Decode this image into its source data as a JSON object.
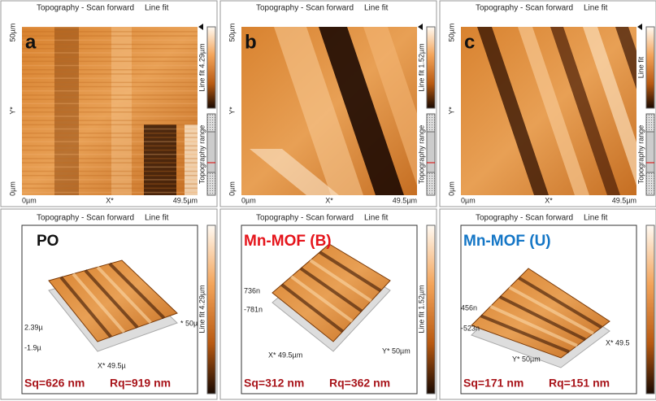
{
  "top_panels": [
    {
      "header": "Topography - Scan forward",
      "mode": "Line fit",
      "letter": "a",
      "y_top": "50µm",
      "y_mid": "Y*",
      "y_bottom": "0µm",
      "x_left": "0µm",
      "x_mid": "X*",
      "x_right": "49.5µm",
      "colorbar": "Line fit 4.29µm",
      "range": "Topography range"
    },
    {
      "header": "Topography - Scan forward",
      "mode": "Line fit",
      "letter": "b",
      "y_top": "50µm",
      "y_mid": "Y*",
      "y_bottom": "0µm",
      "x_left": "0µm",
      "x_mid": "X*",
      "x_right": "49.5µm",
      "colorbar": "Line fit 1.52µm",
      "range": "Topography range"
    },
    {
      "header": "Topography - Scan forward",
      "mode": "Line fit",
      "letter": "c",
      "y_top": "50µm",
      "y_mid": "Y*",
      "y_bottom": "0µm",
      "x_left": "0µm",
      "x_mid": "X*",
      "x_right": "49.5µm",
      "colorbar": "Line fit",
      "range": "Topography range"
    }
  ],
  "bottom_panels": [
    {
      "header": "Topography - Scan forward",
      "mode": "Line fit",
      "sample": "PO",
      "z_max": "2.39µ",
      "z_min": "-1.9µ",
      "x_axis": "X* 49.5µ",
      "y_axis": "* 50µ",
      "colorbar": "Line fit 4.29µm",
      "sq": "Sq=626 nm",
      "rq": "Rq=919 nm"
    },
    {
      "header": "Topography - Scan forward",
      "mode": "Line fit",
      "sample": "Mn-MOF (B)",
      "z_max": "736n",
      "z_min": "-781n",
      "x_axis": "X* 49.5µm",
      "y_axis": "Y* 50µm",
      "colorbar": "Line fit 1.52µm",
      "sq": "Sq=312 nm",
      "rq": "Rq=362 nm"
    },
    {
      "header": "Topography - Scan forward",
      "mode": "Line fit",
      "sample": "Mn-MOF (U)",
      "z_max": "456n",
      "z_min": "-523n",
      "x_axis": "X* 49.5",
      "y_axis": "Y* 50µm",
      "sq": "Sq=171 nm",
      "rq": "Rq=151 nm"
    }
  ]
}
